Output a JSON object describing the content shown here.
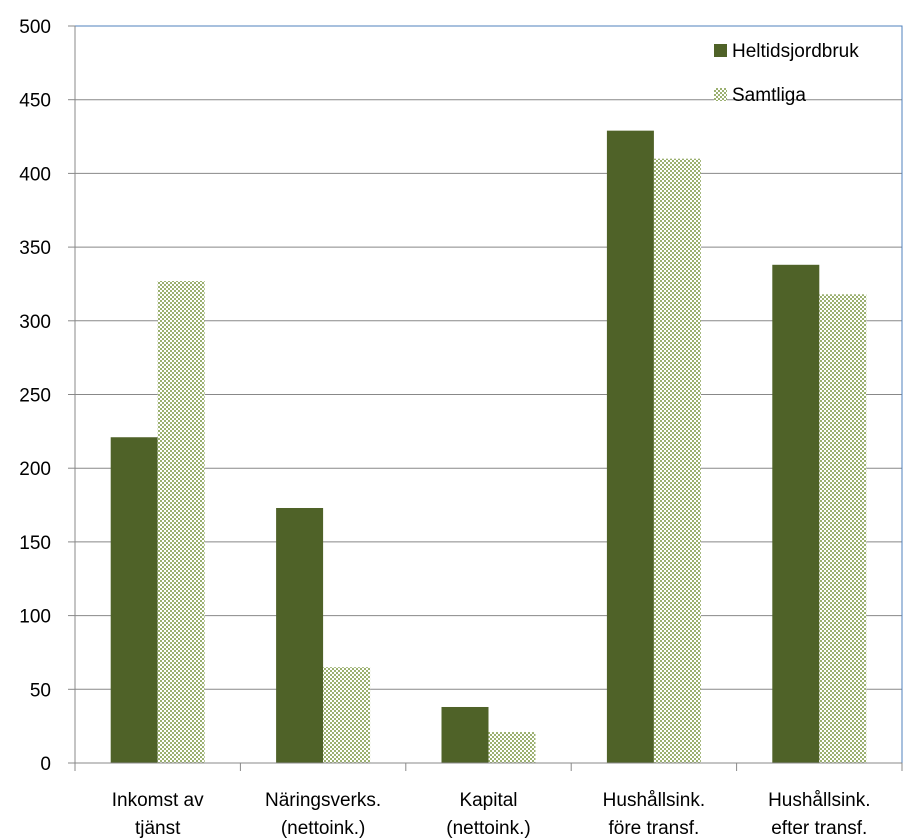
{
  "chart_data": {
    "type": "bar",
    "title": "",
    "xlabel": "",
    "ylabel": "",
    "ylim": [
      0,
      500
    ],
    "yticks": [
      0,
      50,
      100,
      150,
      200,
      250,
      300,
      350,
      400,
      450,
      500
    ],
    "grid": true,
    "legend_position": "top-right",
    "categories": [
      [
        "Inkomst av",
        "tjänst"
      ],
      [
        "Näringsverks.",
        "(nettoink.)"
      ],
      [
        "Kapital",
        "(nettoink.)"
      ],
      [
        "Hushållsink.",
        "före transf."
      ],
      [
        "Hushållsink.",
        "efter transf."
      ]
    ],
    "series": [
      {
        "name": "Heltidsjordbruk",
        "color": "#4f6228",
        "pattern": "solid",
        "values": [
          221,
          173,
          38,
          429,
          338
        ]
      },
      {
        "name": "Samtliga",
        "color": "#c4d79b",
        "pattern": "dotted",
        "values": [
          327,
          65,
          21,
          410,
          318
        ]
      }
    ]
  }
}
